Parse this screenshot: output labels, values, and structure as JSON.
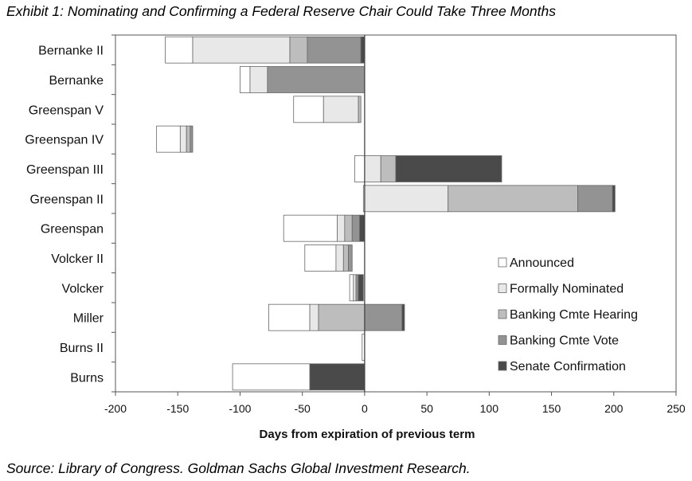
{
  "title": "Exhibit 1: Nominating and Confirming a Federal Reserve Chair Could Take Three Months",
  "source": "Source: Library of Congress. Goldman Sachs Global Investment Research.",
  "chart_data": {
    "type": "bar",
    "orientation": "horizontal",
    "stacked": true,
    "xlabel": "Days from expiration of previous term",
    "xlim": [
      -200,
      250
    ],
    "xticks": [
      -200,
      -150,
      -100,
      -50,
      0,
      50,
      100,
      150,
      200,
      250
    ],
    "legend_position": "bottom-right",
    "series": [
      {
        "name": "Announced",
        "color": "#ffffff"
      },
      {
        "name": "Formally Nominated",
        "color": "#e8e8e8"
      },
      {
        "name": "Banking Cmte Hearing",
        "color": "#bdbdbd"
      },
      {
        "name": "Banking Cmte Vote",
        "color": "#939393"
      },
      {
        "name": "Senate Confirmation",
        "color": "#4a4a4a"
      }
    ],
    "categories": [
      {
        "name": "Bernanke II",
        "segments": [
          [
            -160,
            -138,
            0
          ],
          [
            -138,
            -60,
            1
          ],
          [
            -60,
            -46,
            2
          ],
          [
            -46,
            -3,
            3
          ],
          [
            -3,
            0,
            4
          ]
        ]
      },
      {
        "name": "Bernanke",
        "segments": [
          [
            -100,
            -92,
            0
          ],
          [
            -92,
            -78,
            1
          ],
          [
            -78,
            0,
            3
          ]
        ]
      },
      {
        "name": "Greenspan V",
        "segments": [
          [
            -57,
            -33,
            0
          ],
          [
            -33,
            -5,
            1
          ],
          [
            -5,
            -3,
            2
          ]
        ]
      },
      {
        "name": "Greenspan IV",
        "segments": [
          [
            -167,
            -148,
            0
          ],
          [
            -148,
            -143,
            1
          ],
          [
            -143,
            -140,
            2
          ],
          [
            -140,
            -138,
            3
          ]
        ]
      },
      {
        "name": "Greenspan III",
        "segments": [
          [
            -8,
            0,
            0
          ],
          [
            0,
            13,
            1
          ],
          [
            13,
            25,
            2
          ],
          [
            25,
            110,
            4
          ]
        ]
      },
      {
        "name": "Greenspan II",
        "segments": [
          [
            -1,
            0,
            0
          ],
          [
            0,
            67,
            1
          ],
          [
            67,
            171,
            2
          ],
          [
            171,
            199,
            3
          ],
          [
            199,
            201,
            4
          ]
        ]
      },
      {
        "name": "Greenspan",
        "segments": [
          [
            -65,
            -22,
            0
          ],
          [
            -22,
            -16,
            1
          ],
          [
            -16,
            -10,
            2
          ],
          [
            -10,
            -4,
            3
          ],
          [
            -4,
            0,
            4
          ]
        ]
      },
      {
        "name": "Volcker II",
        "segments": [
          [
            -48,
            -23,
            0
          ],
          [
            -23,
            -17,
            1
          ],
          [
            -17,
            -13,
            2
          ],
          [
            -13,
            -10,
            3
          ]
        ]
      },
      {
        "name": "Volcker",
        "segments": [
          [
            -12,
            -9,
            0
          ],
          [
            -9,
            -7,
            1
          ],
          [
            -7,
            -5,
            3
          ],
          [
            -5,
            -1,
            4
          ]
        ]
      },
      {
        "name": "Miller",
        "segments": [
          [
            -77,
            -44,
            0
          ],
          [
            -44,
            -37,
            1
          ],
          [
            -37,
            0,
            2
          ],
          [
            0,
            30,
            3
          ],
          [
            30,
            32,
            4
          ]
        ]
      },
      {
        "name": "Burns II",
        "segments": [
          [
            -2,
            0,
            0
          ]
        ]
      },
      {
        "name": "Burns",
        "segments": [
          [
            -106,
            -44,
            0
          ],
          [
            -44,
            0,
            4
          ]
        ]
      }
    ]
  }
}
